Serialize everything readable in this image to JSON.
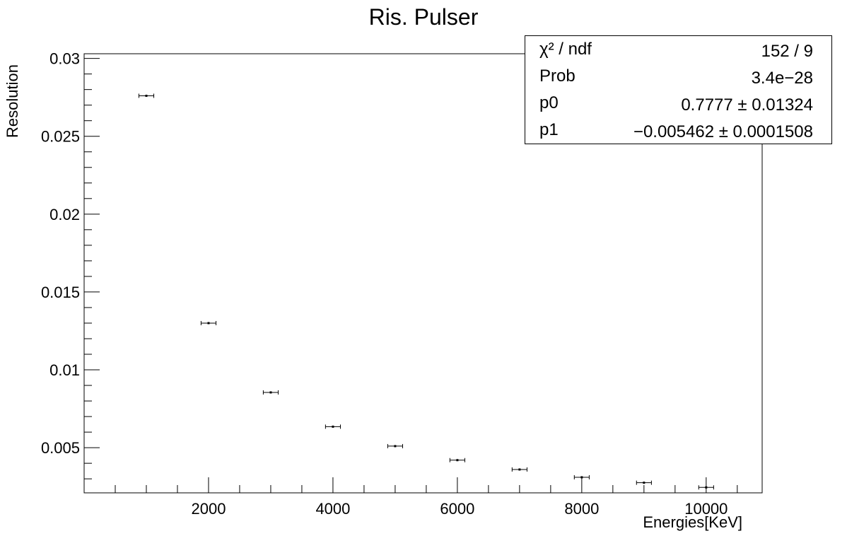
{
  "chart_data": {
    "type": "scatter",
    "title": "Ris. Pulser",
    "xlabel": "Energies[KeV]",
    "ylabel": "Resolution",
    "xlim": [
      0,
      10900
    ],
    "ylim": [
      0.0021,
      0.0303
    ],
    "x_ticks": [
      2000,
      4000,
      6000,
      8000,
      10000
    ],
    "x_tick_labels": [
      "2000",
      "4000",
      "6000",
      "8000",
      "10000"
    ],
    "y_ticks": [
      0.005,
      0.01,
      0.015,
      0.02,
      0.025,
      0.03
    ],
    "y_tick_labels": [
      "0.005",
      "0.01",
      "0.015",
      "0.02",
      "0.025",
      "0.03"
    ],
    "grid": false,
    "series": [
      {
        "kind": "points_with_xerror",
        "color": "#000000",
        "x": [
          1000,
          2000,
          3000,
          4000,
          5000,
          6000,
          7000,
          8000,
          9000,
          10000
        ],
        "y": [
          0.0276,
          0.013,
          0.00855,
          0.00635,
          0.0051,
          0.0042,
          0.0036,
          0.0031,
          0.00275,
          0.00245
        ],
        "x_err": [
          120,
          120,
          120,
          120,
          120,
          120,
          120,
          120,
          120,
          120
        ]
      },
      {
        "kind": "fit_curve",
        "color": "#ff0000",
        "model": "p0 / x + p1",
        "p0": 0.7777,
        "p1": -0.005462,
        "x_range": [
          400,
          10900
        ]
      }
    ],
    "stats_box": {
      "rows": [
        {
          "key": "χ² / ndf",
          "value": "152 / 9"
        },
        {
          "key": "Prob",
          "value": "3.4e−28"
        },
        {
          "key": "p0",
          "value": "0.7777 ± 0.01324"
        },
        {
          "key": "p1",
          "value": "−0.005462 ± 0.0001508"
        }
      ]
    }
  }
}
